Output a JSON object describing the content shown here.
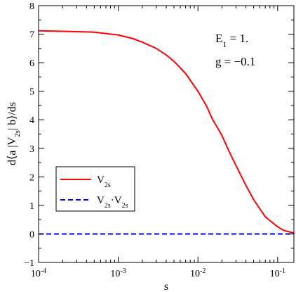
{
  "chart_data": {
    "type": "line",
    "xlabel": "s",
    "ylabel": "d⟨a |V2s| b⟩/ds",
    "ylabel_parts": {
      "pre": "d⟨a |V",
      "sub": "2s",
      "post": "| b⟩/ds"
    },
    "x_scale": "log",
    "xlim": [
      0.0001,
      0.16
    ],
    "ylim": [
      -1,
      8
    ],
    "x_ticks": [
      {
        "base": "10",
        "exp": "-4",
        "value": 0.0001
      },
      {
        "base": "10",
        "exp": "-3",
        "value": 0.001
      },
      {
        "base": "10",
        "exp": "-2",
        "value": 0.01
      },
      {
        "base": "10",
        "exp": "-1",
        "value": 0.1
      }
    ],
    "y_ticks": [
      "-1",
      "0",
      "1",
      "2",
      "3",
      "4",
      "5",
      "6",
      "7",
      "8"
    ],
    "grid": false,
    "legend_position": "lower-left",
    "annotations": [
      {
        "text_main": "E",
        "text_sub": "1",
        "text_rest": " = 1."
      },
      {
        "text": "g = −0.1"
      }
    ],
    "series": [
      {
        "legend": {
          "main": "V",
          "sub": "2s"
        },
        "color": "#ff0000",
        "style": "solid",
        "points": [
          [
            0.0001,
            7.12
          ],
          [
            0.0002,
            7.1
          ],
          [
            0.0005,
            7.07
          ],
          [
            0.001,
            6.97
          ],
          [
            0.0015,
            6.85
          ],
          [
            0.002,
            6.72
          ],
          [
            0.003,
            6.5
          ],
          [
            0.004,
            6.27
          ],
          [
            0.005,
            6.05
          ],
          [
            0.007,
            5.62
          ],
          [
            0.01,
            5.0
          ],
          [
            0.013,
            4.45
          ],
          [
            0.015,
            4.05
          ],
          [
            0.02,
            3.45
          ],
          [
            0.025,
            2.85
          ],
          [
            0.03,
            2.4
          ],
          [
            0.04,
            1.7
          ],
          [
            0.05,
            1.2
          ],
          [
            0.07,
            0.6
          ],
          [
            0.1,
            0.25
          ],
          [
            0.12,
            0.12
          ],
          [
            0.16,
            0.03
          ]
        ]
      },
      {
        "legend": {
          "main": "V",
          "sub": "2s",
          "mid": "·V",
          "sub2": "2s"
        },
        "color": "#0000ff",
        "style": "dashed",
        "points": [
          [
            0.0001,
            0.0
          ],
          [
            0.16,
            0.0
          ]
        ]
      }
    ]
  }
}
